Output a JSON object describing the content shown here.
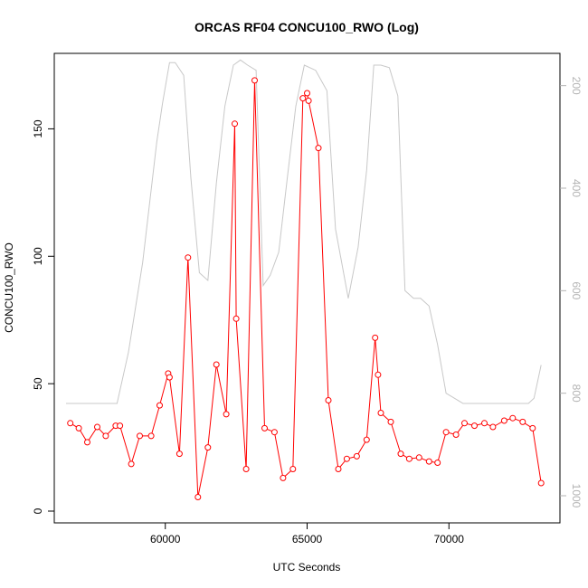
{
  "chart_data": {
    "type": "line",
    "title": "ORCAS RF04 CONCU100_RWO (Log)",
    "xlabel": "UTC Seconds",
    "ylabel": "CONCU100_RWO",
    "xlim": [
      56500,
      73500
    ],
    "ylim": [
      0,
      175
    ],
    "x_ticks": [
      60000,
      65000,
      70000
    ],
    "y_ticks": [
      0,
      50,
      100,
      150
    ],
    "y2lim": [
      1030,
      160
    ],
    "y2_ticks": [
      200,
      400,
      600,
      800,
      1000
    ],
    "grid": false,
    "series": [
      {
        "color": "#ff0000",
        "style": "line-with-open-circles",
        "x": [
          56650,
          56950,
          57250,
          57600,
          57900,
          58250,
          58400,
          58800,
          59100,
          59500,
          59800,
          60100,
          60150,
          60500,
          60800,
          61150,
          61500,
          61800,
          62150,
          62450,
          62500,
          62850,
          63150,
          63500,
          63850,
          64150,
          64500,
          64850,
          65000,
          65050,
          65400,
          65750,
          66100,
          66400,
          66750,
          67100,
          67400,
          67500,
          67600,
          67950,
          68300,
          68600,
          68950,
          69300,
          69600,
          69900,
          70250,
          70550,
          70900,
          71250,
          71550,
          71950,
          72250,
          72600,
          72950,
          73250
        ],
        "y": [
          34.5,
          32.5,
          27,
          33,
          29.5,
          33.5,
          33.5,
          18.5,
          29.5,
          29.5,
          41.5,
          54,
          52.5,
          22.5,
          99.5,
          5.5,
          25,
          57.5,
          38,
          152,
          75.5,
          16.5,
          169,
          32.5,
          31,
          13,
          16.5,
          162,
          164,
          161,
          142.5,
          43.5,
          16.5,
          20.5,
          21.5,
          28,
          68,
          53.5,
          38.5,
          35,
          22.5,
          20.5,
          21,
          19.5,
          19,
          31,
          30,
          34.5,
          33.5,
          34.5,
          33,
          35.5,
          36.5,
          35,
          32.5,
          11
        ]
      },
      {
        "color": "#c8c8c8",
        "style": "line",
        "axis": "right",
        "x": [
          56500,
          57000,
          57600,
          58100,
          58300,
          58700,
          59200,
          59700,
          59900,
          60150,
          60350,
          60650,
          60900,
          61200,
          61500,
          61800,
          62100,
          62400,
          62650,
          62900,
          63200,
          63450,
          63700,
          64000,
          64300,
          64600,
          64900,
          65300,
          65700,
          66000,
          66450,
          66800,
          67100,
          67350,
          67600,
          67900,
          68200,
          68450,
          68750,
          69000,
          69300,
          69600,
          69900,
          70200,
          70500,
          70800,
          71100,
          71400,
          71700,
          72000,
          72300,
          72600,
          72800,
          73000,
          73250
        ],
        "y": [
          820,
          820,
          820,
          820,
          820,
          720,
          545,
          310,
          235,
          155,
          155,
          180,
          380,
          565,
          580,
          390,
          240,
          160,
          150,
          160,
          170,
          590,
          570,
          525,
          380,
          240,
          160,
          170,
          210,
          480,
          615,
          515,
          365,
          160,
          160,
          165,
          220,
          600,
          615,
          615,
          630,
          705,
          800,
          810,
          820,
          820,
          820,
          820,
          820,
          820,
          820,
          820,
          820,
          810,
          745
        ]
      }
    ]
  }
}
